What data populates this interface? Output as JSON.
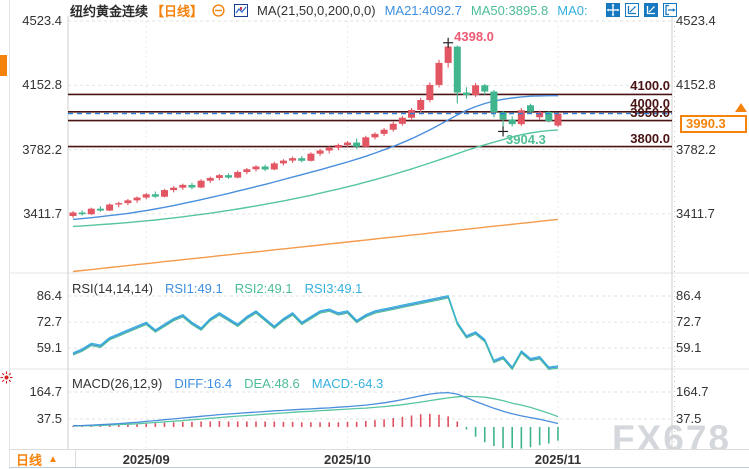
{
  "header": {
    "instrument": "纽约黄金连续",
    "period_tag": "【日线】",
    "ma_settings": "MA(21,50,0,200,0,0)",
    "ma21_readout": "MA21:4092.7",
    "ma50_readout": "MA50:3895.8",
    "ma0_readout": "MA0:"
  },
  "toolbar_icons": [
    "minus-circle-icon",
    "candle-chart-icon",
    "pan-move-icon",
    "axis-scale-icon",
    "axis-scale-filled-icon",
    "exit-right-icon",
    "alert-sun-icon"
  ],
  "colors": {
    "up_candle": "#e25562",
    "down_candle": "#41b58d",
    "ma21_line": "#4a8fdd",
    "ma50_line": "#57c6a0",
    "ma200_line": "#f59a4a",
    "level_line": "#4a1414",
    "last_price_line": "#2a7fd6",
    "accent_orange": "#f5820b",
    "blue_text": "#3f8fe0",
    "green_text": "#4dbd98",
    "cyan_text": "#35b1dd",
    "high_label_pink": "#ed5a74",
    "low_label_green": "#4fbf96",
    "watermark_gray": "#d4d7dc",
    "hist_pos": "#e05060",
    "hist_neg": "#3eb489"
  },
  "chart_data": {
    "type": "candlestick",
    "title": "纽约黄金连续 日线",
    "y_ticks_main": [
      "4523.4",
      "4152.8",
      "3782.2",
      "3411.7"
    ],
    "levels": [
      "4100.0",
      "4000.0",
      "3950.0",
      "3800.0"
    ],
    "last_price_label": "3990.3",
    "x_labels": [
      {
        "label": "2025/09",
        "i": 8
      },
      {
        "label": "2025/10",
        "i": 30
      },
      {
        "label": "2025/11",
        "i": 53
      }
    ],
    "annotations": {
      "high": {
        "label": "4398.0",
        "value": 4398.0,
        "index": 41
      },
      "low": {
        "label": "3904.3",
        "value": 3904.3,
        "index": 47
      }
    },
    "candles_ohlc": [
      [
        3400,
        3428,
        3390,
        3420
      ],
      [
        3420,
        3432,
        3402,
        3410
      ],
      [
        3410,
        3448,
        3406,
        3442
      ],
      [
        3442,
        3456,
        3424,
        3431
      ],
      [
        3431,
        3472,
        3428,
        3466
      ],
      [
        3466,
        3482,
        3450,
        3474
      ],
      [
        3474,
        3498,
        3462,
        3490
      ],
      [
        3490,
        3512,
        3476,
        3506
      ],
      [
        3506,
        3532,
        3496,
        3525
      ],
      [
        3525,
        3541,
        3504,
        3511
      ],
      [
        3511,
        3556,
        3507,
        3549
      ],
      [
        3549,
        3572,
        3536,
        3563
      ],
      [
        3563,
        3586,
        3551,
        3579
      ],
      [
        3579,
        3591,
        3554,
        3564
      ],
      [
        3564,
        3612,
        3560,
        3603
      ],
      [
        3603,
        3627,
        3591,
        3619
      ],
      [
        3619,
        3642,
        3606,
        3635
      ],
      [
        3635,
        3646,
        3614,
        3621
      ],
      [
        3621,
        3662,
        3617,
        3653
      ],
      [
        3653,
        3677,
        3641,
        3669
      ],
      [
        3669,
        3692,
        3656,
        3685
      ],
      [
        3685,
        3696,
        3659,
        3668
      ],
      [
        3668,
        3712,
        3664,
        3703
      ],
      [
        3703,
        3727,
        3691,
        3719
      ],
      [
        3719,
        3742,
        3706,
        3733
      ],
      [
        3733,
        3746,
        3709,
        3718
      ],
      [
        3718,
        3767,
        3714,
        3759
      ],
      [
        3759,
        3787,
        3746,
        3777
      ],
      [
        3777,
        3802,
        3761,
        3793
      ],
      [
        3793,
        3817,
        3779,
        3809
      ],
      [
        3809,
        3832,
        3796,
        3823
      ],
      [
        3823,
        3846,
        3787,
        3799
      ],
      [
        3799,
        3862,
        3794,
        3853
      ],
      [
        3853,
        3882,
        3841,
        3873
      ],
      [
        3873,
        3907,
        3861,
        3897
      ],
      [
        3897,
        3942,
        3886,
        3931
      ],
      [
        3931,
        3977,
        3921,
        3966
      ],
      [
        3966,
        4022,
        3956,
        4011
      ],
      [
        4011,
        4080,
        3996,
        4068
      ],
      [
        4068,
        4170,
        4055,
        4155
      ],
      [
        4155,
        4300,
        4140,
        4282
      ],
      [
        4282,
        4398,
        4255,
        4376
      ],
      [
        4376,
        4382,
        4048,
        4111
      ],
      [
        4111,
        4142,
        4076,
        4097
      ],
      [
        4097,
        4166,
        4086,
        4153
      ],
      [
        4153,
        4161,
        4098,
        4117
      ],
      [
        4117,
        4126,
        3968,
        3998
      ],
      [
        3998,
        4005,
        3904.3,
        3956
      ],
      [
        3956,
        3974,
        3916,
        3929
      ],
      [
        3929,
        4022,
        3919,
        4009
      ],
      [
        4038,
        4047,
        3988,
        4001
      ],
      [
        3969,
        4007,
        3956,
        3999
      ],
      [
        3999,
        4004,
        3939,
        3947
      ],
      [
        3921,
        3996,
        3913,
        3990.3
      ]
    ],
    "ma21": [
      3380,
      3385,
      3390,
      3396,
      3402,
      3408,
      3415,
      3423,
      3431,
      3440,
      3450,
      3460,
      3471,
      3482,
      3494,
      3506,
      3518,
      3530,
      3543,
      3556,
      3569,
      3582,
      3596,
      3610,
      3624,
      3638,
      3652,
      3666,
      3681,
      3696,
      3711,
      3727,
      3744,
      3762,
      3781,
      3801,
      3822,
      3845,
      3870,
      3896,
      3924,
      3953,
      3982,
      4008,
      4030,
      4048,
      4062,
      4072,
      4080,
      4086,
      4090,
      4092,
      4093,
      4092.7
    ],
    "ma50": [
      3340,
      3343,
      3346,
      3350,
      3354,
      3358,
      3362,
      3367,
      3372,
      3377,
      3383,
      3389,
      3395,
      3402,
      3409,
      3416,
      3424,
      3432,
      3440,
      3449,
      3458,
      3467,
      3477,
      3487,
      3497,
      3508,
      3519,
      3531,
      3543,
      3555,
      3568,
      3581,
      3595,
      3609,
      3624,
      3639,
      3655,
      3671,
      3688,
      3705,
      3723,
      3741,
      3759,
      3777,
      3794,
      3810,
      3825,
      3840,
      3855,
      3868,
      3878,
      3886,
      3892,
      3895.8
    ],
    "ma200": [
      3080,
      3086,
      3091,
      3097,
      3103,
      3108,
      3114,
      3120,
      3125,
      3131,
      3137,
      3142,
      3148,
      3154,
      3159,
      3165,
      3171,
      3176,
      3182,
      3188,
      3193,
      3199,
      3205,
      3210,
      3216,
      3222,
      3227,
      3233,
      3239,
      3244,
      3250,
      3256,
      3261,
      3267,
      3273,
      3278,
      3284,
      3290,
      3295,
      3301,
      3307,
      3312,
      3318,
      3324,
      3329,
      3335,
      3341,
      3346,
      3352,
      3358,
      3363,
      3369,
      3375,
      3380
    ],
    "rsi": {
      "y_ticks": [
        "86.4",
        "72.7",
        "59.1"
      ],
      "values": [
        56,
        58,
        61,
        60,
        64,
        66,
        68,
        70,
        72,
        68,
        71,
        74,
        76,
        72,
        69,
        74,
        77,
        74,
        71,
        75,
        78,
        74,
        70,
        74,
        77,
        72,
        75,
        78,
        79,
        77,
        78,
        73,
        76,
        78,
        79,
        80,
        81,
        82,
        83,
        84,
        85,
        86,
        72,
        65,
        67,
        63,
        52,
        54,
        48.5,
        57,
        53,
        54,
        48.5,
        49.1
      ]
    },
    "macd": {
      "y_ticks": [
        "164.7",
        "37.5"
      ],
      "diff": [
        6,
        7,
        9,
        11,
        13,
        16,
        19,
        22,
        26,
        30,
        34,
        38,
        42,
        46,
        50,
        54,
        58,
        61,
        64,
        67,
        70,
        73,
        76,
        78,
        81,
        83,
        85,
        88,
        90,
        93,
        96,
        99,
        103,
        108,
        114,
        121,
        129,
        138,
        147,
        155,
        160,
        162,
        155,
        138,
        120,
        104,
        88,
        74,
        62,
        52,
        44,
        36,
        26,
        16.4
      ],
      "dea": [
        4,
        5,
        6,
        7,
        9,
        11,
        13,
        15,
        18,
        21,
        24,
        27,
        30,
        34,
        37,
        41,
        44,
        48,
        51,
        54,
        57,
        60,
        63,
        66,
        69,
        72,
        74,
        77,
        79,
        82,
        84,
        87,
        89,
        92,
        96,
        100,
        105,
        111,
        117,
        124,
        131,
        137,
        142,
        144,
        143,
        140,
        133,
        124,
        112,
        103,
        92,
        79,
        65,
        48.6
      ]
    }
  },
  "rsi_panel": {
    "header": "RSI(14,14,14)",
    "rsi1_readout": "RSI1:49.1",
    "rsi2_readout": "RSI2:49.1",
    "rsi3_readout": "RSI3:49.1"
  },
  "macd_panel": {
    "header": "MACD(26,12,9)",
    "diff_readout": "DIFF:16.4",
    "dea_readout": "DEA:48.6",
    "macd_readout": "MACD:-64.3"
  },
  "bottom": {
    "tab_label": "日线"
  },
  "watermark": "FX678"
}
